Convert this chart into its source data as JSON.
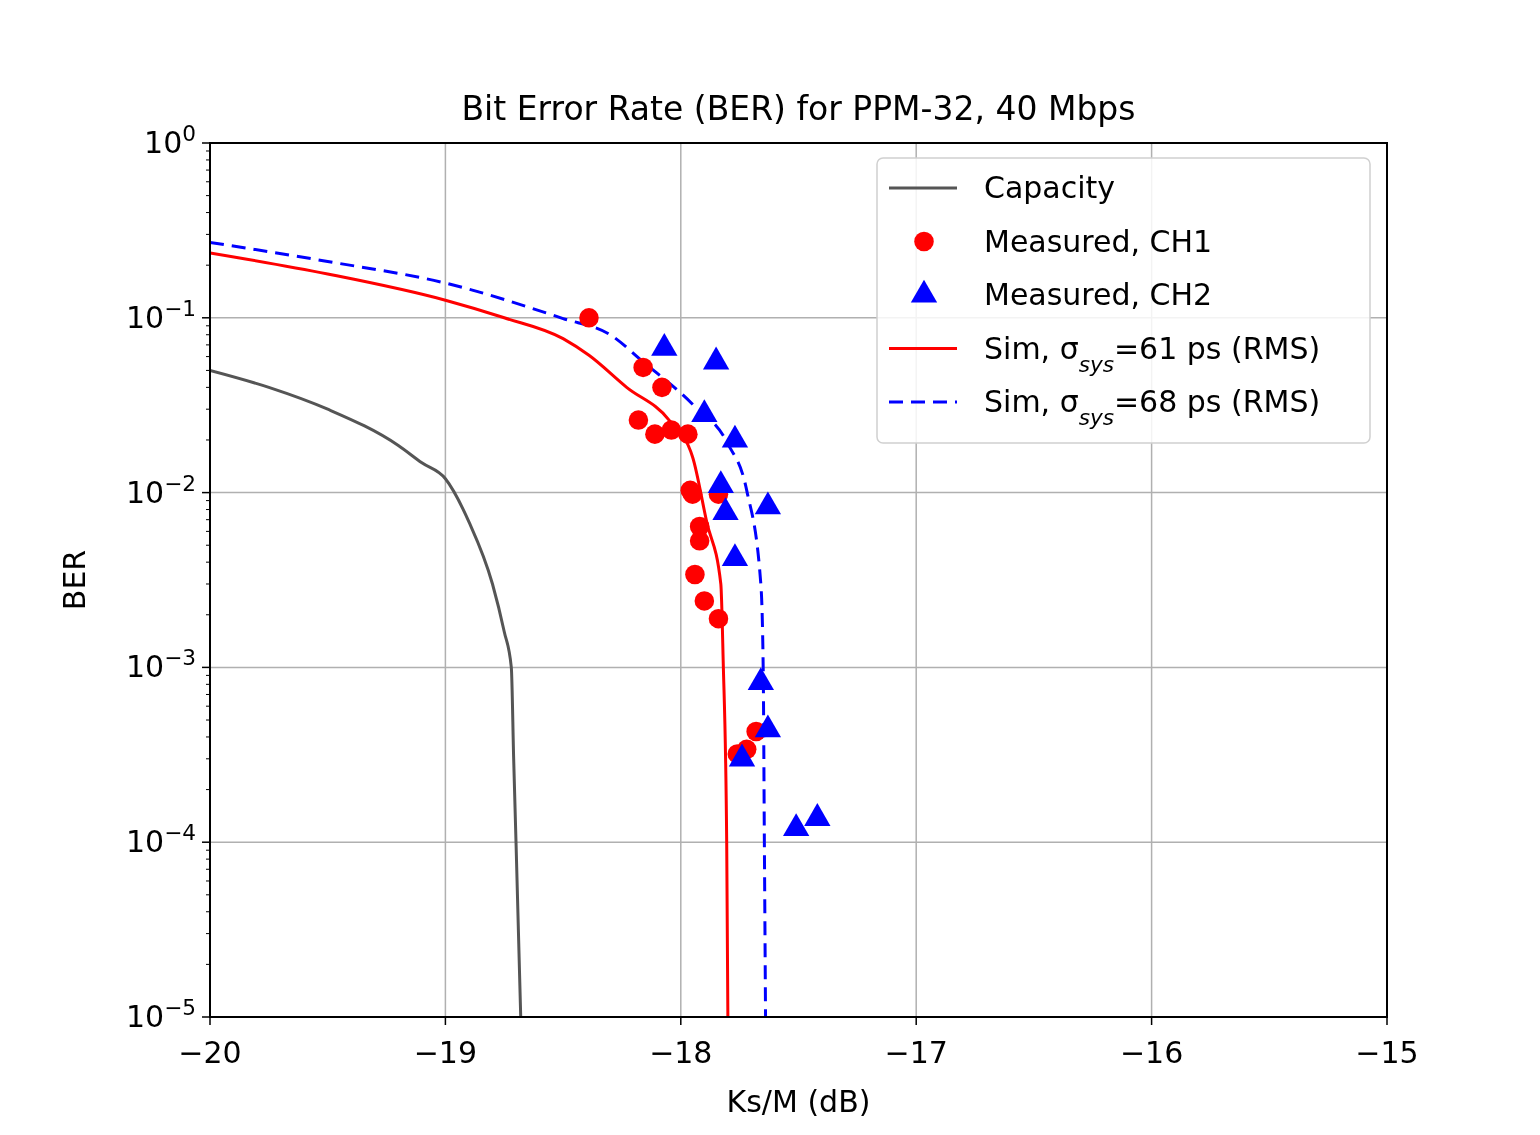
{
  "chart_data": {
    "type": "line",
    "title": "Bit Error Rate (BER) for PPM-32, 40 Mbps",
    "xlabel": "Ks/M (dB)",
    "ylabel": "BER",
    "log": "y",
    "grid": true,
    "legend": "top right",
    "xlim": [
      -20,
      -15
    ],
    "xticks": [
      {
        "value": -20,
        "label": "−20"
      },
      {
        "value": -19,
        "label": "−19"
      },
      {
        "value": -18,
        "label": "−18"
      },
      {
        "value": -17,
        "label": "−17"
      },
      {
        "value": -16,
        "label": "−16"
      },
      {
        "value": -15,
        "label": "−15"
      }
    ],
    "ylim": [
      1e-05,
      1
    ],
    "yticks": [
      {
        "value": 1e-05,
        "label": "10$^{−5}$"
      },
      {
        "value": 0.0001,
        "label": "10$^{−4}$"
      },
      {
        "value": 0.001,
        "label": "10$^{−3}$"
      },
      {
        "value": 0.01,
        "label": "10$^{−2}$"
      },
      {
        "value": 0.1,
        "label": "10$^{−1}$"
      },
      {
        "value": 1,
        "label": "10$^{0}$"
      }
    ],
    "series": [
      {
        "name": "Capacity",
        "color": "#555555",
        "line_style": "solid",
        "marker": "none",
        "x": [
          -20,
          -19.75,
          -19.5,
          -19.2,
          -19.1,
          -19,
          -18.9,
          -18.8,
          -18.75,
          -18.72,
          -18.71,
          -18.7,
          -18.68
        ],
        "values": [
          0.05,
          0.04,
          0.03,
          0.0186,
          0.0148,
          0.012,
          0.0068,
          0.003,
          0.0016,
          0.001,
          0.0003,
          0.0001,
          1e-05
        ]
      },
      {
        "name": "Measured, CH1",
        "type": "scatter",
        "color": "#ff0000",
        "marker": "circle",
        "x": [
          -18.39,
          -18.16,
          -18.08,
          -18.18,
          -18.11,
          -18.04,
          -17.97,
          -17.96,
          -17.95,
          -17.84,
          -17.92,
          -17.92,
          -17.94,
          -17.9,
          -17.84,
          -17.68,
          -17.72,
          -17.76
        ],
        "values": [
          0.1,
          0.052,
          0.04,
          0.026,
          0.0216,
          0.0228,
          0.0216,
          0.0103,
          0.0098,
          0.0098,
          0.0064,
          0.0053,
          0.0034,
          0.0024,
          0.0019,
          0.00043,
          0.00034,
          0.00032
        ]
      },
      {
        "name": "Measured, CH2",
        "type": "scatter",
        "color": "#0000ff",
        "marker": "triangle",
        "x": [
          -18.07,
          -17.85,
          -17.9,
          -17.77,
          -17.83,
          -17.81,
          -17.63,
          -17.77,
          -17.66,
          -17.63,
          -17.74,
          -17.51,
          -17.42
        ],
        "values": [
          0.067,
          0.056,
          0.028,
          0.02,
          0.011,
          0.0077,
          0.0083,
          0.0042,
          0.00082,
          0.00044,
          0.0003,
          0.00012,
          0.000137
        ]
      },
      {
        "name": "Sim, σ$_{sys}$=61 ps (RMS)",
        "color": "#ff0000",
        "line_style": "solid",
        "marker": "none",
        "x": [
          -20,
          -19.5,
          -19,
          -18.75,
          -18.5,
          -18.39,
          -18.23,
          -18.05,
          -17.95,
          -17.89,
          -17.83,
          -17.82,
          -17.805,
          -17.8
        ],
        "values": [
          0.235,
          0.178,
          0.126,
          0.1,
          0.076,
          0.061,
          0.04,
          0.026,
          0.016,
          0.0068,
          0.003,
          0.0011,
          0.0001,
          1e-05
        ]
      },
      {
        "name": "Sim, σ$_{sys}$=68 ps (RMS)",
        "color": "#0000ff",
        "line_style": "dashed",
        "marker": "none",
        "x": [
          -20,
          -19.5,
          -19,
          -18.5,
          -18.3,
          -18.16,
          -17.95,
          -17.8,
          -17.72,
          -17.66,
          -17.65,
          -17.645,
          -17.64
        ],
        "values": [
          0.27,
          0.21,
          0.158,
          0.099,
          0.08,
          0.056,
          0.032,
          0.019,
          0.0103,
          0.003,
          0.001,
          0.0001,
          1e-05
        ]
      }
    ]
  }
}
